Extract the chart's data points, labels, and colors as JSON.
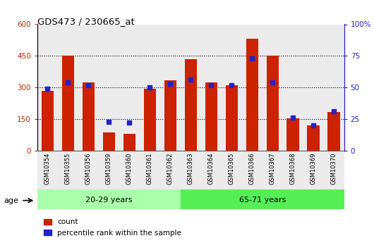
{
  "title": "GDS473 / 230665_at",
  "samples": [
    "GSM10354",
    "GSM10355",
    "GSM10356",
    "GSM10359",
    "GSM10360",
    "GSM10361",
    "GSM10362",
    "GSM10363",
    "GSM10364",
    "GSM10365",
    "GSM10366",
    "GSM10367",
    "GSM10368",
    "GSM10369",
    "GSM10370"
  ],
  "count_values": [
    285,
    450,
    325,
    85,
    80,
    295,
    335,
    435,
    325,
    310,
    530,
    450,
    155,
    120,
    185
  ],
  "percentile_values": [
    49,
    54,
    52,
    23,
    22,
    50,
    53,
    56,
    52,
    52,
    73,
    54,
    26,
    20,
    31
  ],
  "group1_label": "20-29 years",
  "group2_label": "65-71 years",
  "group1_count": 7,
  "bar_color": "#cc2200",
  "dot_color": "#2222cc",
  "left_yticks": [
    0,
    150,
    300,
    450,
    600
  ],
  "right_yticks": [
    0,
    25,
    50,
    75,
    100
  ],
  "ylim_left": [
    0,
    600
  ],
  "ylim_right": [
    0,
    100
  ],
  "left_tick_color": "#cc2200",
  "right_tick_color": "#2222cc",
  "bg_color": "#ffffff",
  "col_bg_color": "#d8d8d8",
  "group1_bg": "#aaffaa",
  "group2_bg": "#55ee55",
  "legend_count_label": "count",
  "legend_pct_label": "percentile rank within the sample"
}
